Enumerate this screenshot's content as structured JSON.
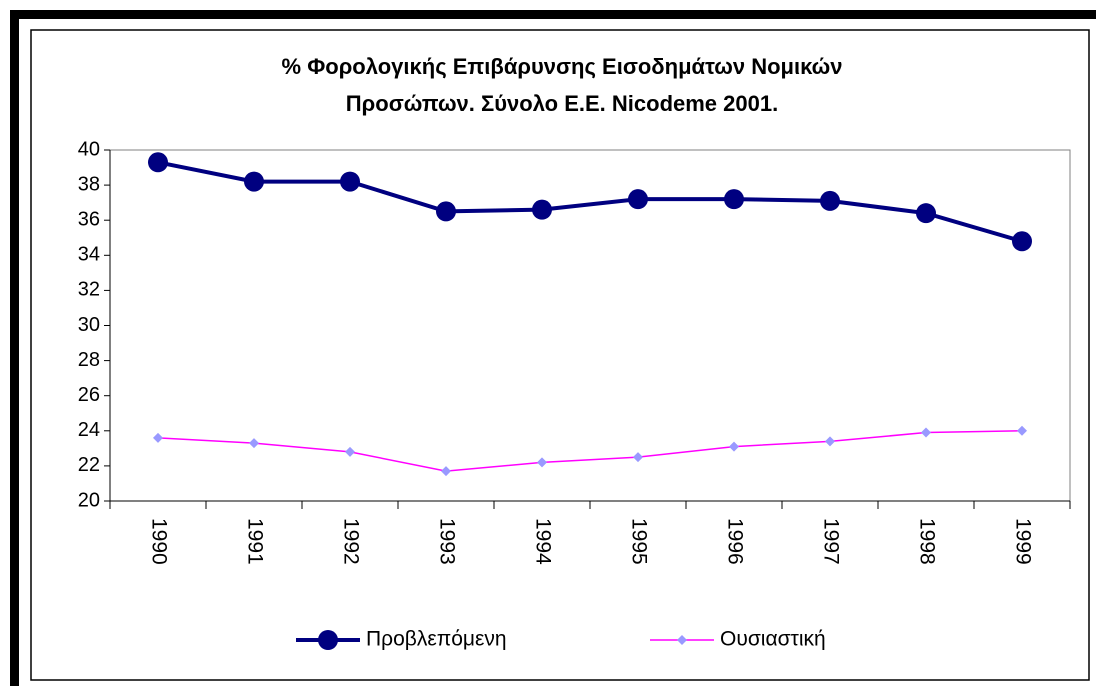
{
  "chart_data": {
    "type": "line",
    "title": [
      "% Φορολογικής Επιβάρυνσης Εισοδημάτων Νομικών",
      "Προσώπων. Σύνολο Ε.Ε.  Nicodeme 2001."
    ],
    "categories": [
      "1990",
      "1991",
      "1992",
      "1993",
      "1994",
      "1995",
      "1996",
      "1997",
      "1998",
      "1999"
    ],
    "series": [
      {
        "name": "Προβλεπόμενη",
        "color": "#000080",
        "marker": "circle",
        "marker_color": "#000080",
        "values": [
          39.3,
          38.2,
          38.2,
          36.5,
          36.6,
          37.2,
          37.2,
          37.1,
          36.4,
          34.8
        ]
      },
      {
        "name": "Ουσιαστική",
        "color": "#ff00ff",
        "marker": "diamond",
        "marker_color": "#9999ff",
        "values": [
          23.6,
          23.3,
          22.8,
          21.7,
          22.2,
          22.5,
          23.1,
          23.4,
          23.9,
          24.0
        ]
      }
    ],
    "ylim": [
      20,
      40
    ],
    "yticks": [
      20,
      22,
      24,
      26,
      28,
      30,
      32,
      34,
      36,
      38,
      40
    ],
    "grid": false,
    "legend": "bottom"
  }
}
